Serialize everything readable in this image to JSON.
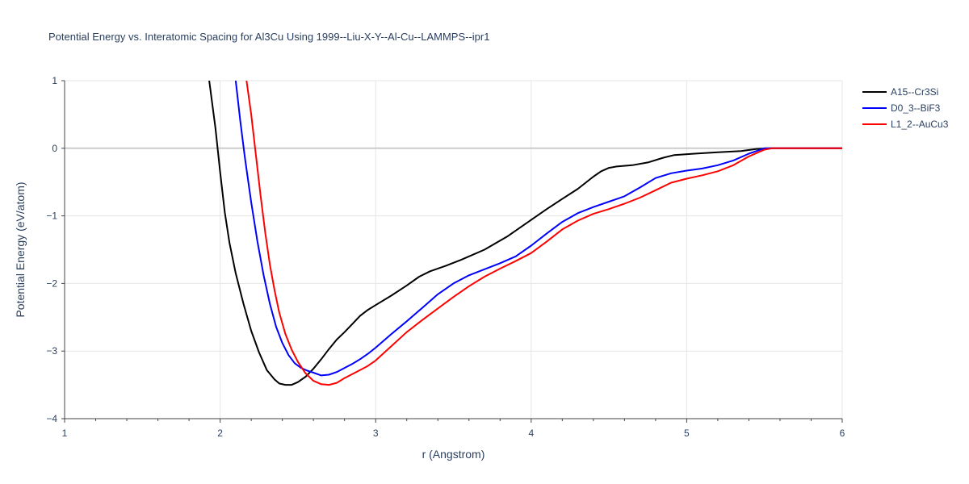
{
  "chart_data": {
    "type": "line",
    "title": "Potential Energy vs. Interatomic Spacing for Al3Cu Using 1999--Liu-X-Y--Al-Cu--LAMMPS--ipr1",
    "xlabel": "r (Angstrom)",
    "ylabel": "Potential Energy (eV/atom)",
    "xlim": [
      1,
      6
    ],
    "ylim": [
      -4,
      1
    ],
    "xticks": [
      1,
      2,
      3,
      4,
      5,
      6
    ],
    "xtick_labels": [
      "1",
      "2",
      "3",
      "4",
      "5",
      "6"
    ],
    "yticks": [
      1,
      0,
      -1,
      -2,
      -3,
      -4
    ],
    "ytick_labels": [
      "1",
      "0",
      "−1",
      "−2",
      "−3",
      "−4"
    ],
    "grid": true,
    "legend_position": "top-right",
    "series": [
      {
        "name": "A15--Cr3Si",
        "color": "#000000",
        "points": [
          [
            1.93,
            1.0
          ],
          [
            1.97,
            0.3
          ],
          [
            2.0,
            -0.35
          ],
          [
            2.03,
            -0.95
          ],
          [
            2.06,
            -1.4
          ],
          [
            2.1,
            -1.85
          ],
          [
            2.15,
            -2.3
          ],
          [
            2.2,
            -2.7
          ],
          [
            2.25,
            -3.02
          ],
          [
            2.3,
            -3.28
          ],
          [
            2.35,
            -3.42
          ],
          [
            2.38,
            -3.48
          ],
          [
            2.42,
            -3.5
          ],
          [
            2.46,
            -3.5
          ],
          [
            2.5,
            -3.46
          ],
          [
            2.55,
            -3.38
          ],
          [
            2.6,
            -3.26
          ],
          [
            2.65,
            -3.12
          ],
          [
            2.7,
            -2.97
          ],
          [
            2.75,
            -2.83
          ],
          [
            2.8,
            -2.72
          ],
          [
            2.85,
            -2.6
          ],
          [
            2.9,
            -2.48
          ],
          [
            2.95,
            -2.39
          ],
          [
            3.0,
            -2.32
          ],
          [
            3.1,
            -2.18
          ],
          [
            3.2,
            -2.03
          ],
          [
            3.28,
            -1.9
          ],
          [
            3.35,
            -1.82
          ],
          [
            3.45,
            -1.74
          ],
          [
            3.55,
            -1.65
          ],
          [
            3.7,
            -1.5
          ],
          [
            3.85,
            -1.3
          ],
          [
            4.0,
            -1.06
          ],
          [
            4.1,
            -0.9
          ],
          [
            4.2,
            -0.75
          ],
          [
            4.3,
            -0.6
          ],
          [
            4.4,
            -0.42
          ],
          [
            4.45,
            -0.34
          ],
          [
            4.5,
            -0.29
          ],
          [
            4.55,
            -0.27
          ],
          [
            4.65,
            -0.25
          ],
          [
            4.75,
            -0.21
          ],
          [
            4.85,
            -0.14
          ],
          [
            4.92,
            -0.1
          ],
          [
            5.05,
            -0.08
          ],
          [
            5.2,
            -0.06
          ],
          [
            5.35,
            -0.04
          ],
          [
            5.45,
            -0.01
          ],
          [
            5.55,
            0.0
          ],
          [
            6.0,
            0.0
          ]
        ]
      },
      {
        "name": "D0_3--BiF3",
        "color": "#0000ff",
        "points": [
          [
            2.1,
            1.0
          ],
          [
            2.13,
            0.4
          ],
          [
            2.16,
            -0.15
          ],
          [
            2.2,
            -0.8
          ],
          [
            2.24,
            -1.38
          ],
          [
            2.28,
            -1.88
          ],
          [
            2.32,
            -2.3
          ],
          [
            2.36,
            -2.64
          ],
          [
            2.4,
            -2.88
          ],
          [
            2.44,
            -3.06
          ],
          [
            2.48,
            -3.18
          ],
          [
            2.52,
            -3.25
          ],
          [
            2.56,
            -3.29
          ],
          [
            2.6,
            -3.32
          ],
          [
            2.65,
            -3.36
          ],
          [
            2.7,
            -3.35
          ],
          [
            2.75,
            -3.31
          ],
          [
            2.8,
            -3.25
          ],
          [
            2.85,
            -3.19
          ],
          [
            2.9,
            -3.12
          ],
          [
            2.95,
            -3.04
          ],
          [
            3.0,
            -2.95
          ],
          [
            3.1,
            -2.75
          ],
          [
            3.2,
            -2.56
          ],
          [
            3.3,
            -2.36
          ],
          [
            3.4,
            -2.16
          ],
          [
            3.5,
            -2.0
          ],
          [
            3.6,
            -1.88
          ],
          [
            3.7,
            -1.79
          ],
          [
            3.8,
            -1.7
          ],
          [
            3.9,
            -1.6
          ],
          [
            4.0,
            -1.44
          ],
          [
            4.1,
            -1.26
          ],
          [
            4.2,
            -1.09
          ],
          [
            4.3,
            -0.96
          ],
          [
            4.4,
            -0.87
          ],
          [
            4.5,
            -0.79
          ],
          [
            4.6,
            -0.71
          ],
          [
            4.7,
            -0.58
          ],
          [
            4.8,
            -0.44
          ],
          [
            4.9,
            -0.37
          ],
          [
            5.0,
            -0.33
          ],
          [
            5.1,
            -0.3
          ],
          [
            5.2,
            -0.25
          ],
          [
            5.3,
            -0.18
          ],
          [
            5.4,
            -0.08
          ],
          [
            5.5,
            0.0
          ],
          [
            6.0,
            0.0
          ]
        ]
      },
      {
        "name": "L1_2--AuCu3",
        "color": "#ff0000",
        "points": [
          [
            2.17,
            1.0
          ],
          [
            2.2,
            0.5
          ],
          [
            2.23,
            -0.1
          ],
          [
            2.26,
            -0.7
          ],
          [
            2.29,
            -1.25
          ],
          [
            2.32,
            -1.72
          ],
          [
            2.35,
            -2.1
          ],
          [
            2.38,
            -2.43
          ],
          [
            2.42,
            -2.75
          ],
          [
            2.46,
            -2.98
          ],
          [
            2.5,
            -3.16
          ],
          [
            2.55,
            -3.33
          ],
          [
            2.6,
            -3.44
          ],
          [
            2.65,
            -3.49
          ],
          [
            2.7,
            -3.5
          ],
          [
            2.75,
            -3.47
          ],
          [
            2.8,
            -3.4
          ],
          [
            2.85,
            -3.34
          ],
          [
            2.9,
            -3.28
          ],
          [
            2.95,
            -3.22
          ],
          [
            3.0,
            -3.14
          ],
          [
            3.1,
            -2.93
          ],
          [
            3.2,
            -2.72
          ],
          [
            3.3,
            -2.54
          ],
          [
            3.4,
            -2.37
          ],
          [
            3.5,
            -2.2
          ],
          [
            3.6,
            -2.04
          ],
          [
            3.7,
            -1.9
          ],
          [
            3.8,
            -1.78
          ],
          [
            3.9,
            -1.67
          ],
          [
            4.0,
            -1.55
          ],
          [
            4.1,
            -1.38
          ],
          [
            4.2,
            -1.2
          ],
          [
            4.3,
            -1.07
          ],
          [
            4.4,
            -0.97
          ],
          [
            4.5,
            -0.9
          ],
          [
            4.6,
            -0.82
          ],
          [
            4.7,
            -0.73
          ],
          [
            4.8,
            -0.62
          ],
          [
            4.9,
            -0.51
          ],
          [
            5.0,
            -0.45
          ],
          [
            5.1,
            -0.4
          ],
          [
            5.2,
            -0.34
          ],
          [
            5.3,
            -0.25
          ],
          [
            5.4,
            -0.12
          ],
          [
            5.5,
            -0.02
          ],
          [
            5.55,
            0.0
          ],
          [
            6.0,
            0.0
          ]
        ]
      }
    ]
  }
}
